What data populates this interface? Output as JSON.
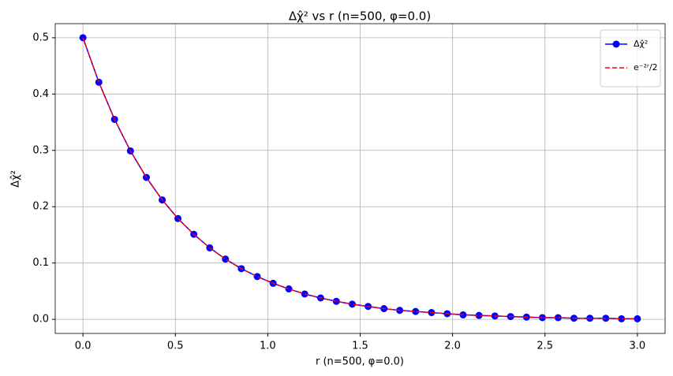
{
  "chart_data": {
    "type": "line",
    "title": "Δχ̂² vs r (n=500, φ=0.0)",
    "x_label": "r (n=500, φ=0.0)",
    "y_label": "Δχ̂²",
    "x": [
      0,
      0.086,
      0.171,
      0.257,
      0.343,
      0.429,
      0.514,
      0.6,
      0.686,
      0.771,
      0.857,
      0.943,
      1.029,
      1.114,
      1.2,
      1.286,
      1.371,
      1.457,
      1.543,
      1.629,
      1.714,
      1.8,
      1.886,
      1.971,
      2.057,
      2.143,
      2.229,
      2.314,
      2.4,
      2.486,
      2.571,
      2.657,
      2.743,
      2.829,
      2.914,
      3
    ],
    "series": [
      {
        "name": "Δχ̂²",
        "color": "#0000ff",
        "marker": "circle",
        "linestyle": "solid",
        "values": [
          0.5,
          0.421,
          0.355,
          0.299,
          0.252,
          0.212,
          0.179,
          0.151,
          0.127,
          0.107,
          0.09,
          0.076,
          0.064,
          0.054,
          0.045,
          0.038,
          0.032,
          0.027,
          0.023,
          0.019,
          0.016,
          0.014,
          0.012,
          0.01,
          0.008,
          0.007,
          0.006,
          0.005,
          0.004,
          0.003,
          0.003,
          0.002,
          0.002,
          0.002,
          0.001,
          0.001
        ]
      },
      {
        "name": "e⁻²ʳ/2",
        "color": "#ff0000",
        "linestyle": "dashed",
        "values": [
          0.5,
          0.421,
          0.355,
          0.299,
          0.252,
          0.212,
          0.179,
          0.151,
          0.127,
          0.107,
          0.09,
          0.076,
          0.064,
          0.054,
          0.045,
          0.038,
          0.032,
          0.027,
          0.023,
          0.019,
          0.016,
          0.014,
          0.012,
          0.01,
          0.008,
          0.007,
          0.006,
          0.005,
          0.004,
          0.003,
          0.003,
          0.002,
          0.002,
          0.002,
          0.001,
          0.001
        ]
      }
    ],
    "xlim": [
      -0.15,
      3.15
    ],
    "ylim": [
      -0.025,
      0.525
    ],
    "xticks": [
      {
        "value": 0,
        "label": "0.0"
      },
      {
        "value": 0.5,
        "label": "0.5"
      },
      {
        "value": 1,
        "label": "1.0"
      },
      {
        "value": 1.5,
        "label": "1.5"
      },
      {
        "value": 2,
        "label": "2.0"
      },
      {
        "value": 2.5,
        "label": "2.5"
      },
      {
        "value": 3,
        "label": "3.0"
      }
    ],
    "yticks": [
      {
        "value": 0,
        "label": "0.0"
      },
      {
        "value": 0.1,
        "label": "0.1"
      },
      {
        "value": 0.2,
        "label": "0.2"
      },
      {
        "value": 0.3,
        "label": "0.3"
      },
      {
        "value": 0.4,
        "label": "0.4"
      },
      {
        "value": 0.5,
        "label": "0.5"
      }
    ],
    "grid": true,
    "legend": "upper right"
  }
}
